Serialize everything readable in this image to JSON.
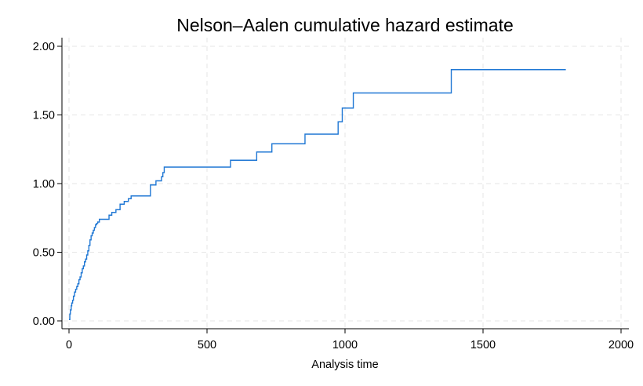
{
  "chart_data": {
    "type": "line",
    "title": "Nelson–Aalen cumulative hazard estimate",
    "xlabel": "Analysis time",
    "ylabel": "",
    "xlim": [
      0,
      2000
    ],
    "ylim": [
      0,
      2.0
    ],
    "xticks": [
      0,
      500,
      1000,
      1500,
      2000
    ],
    "xtick_labels": [
      "0",
      "500",
      "1000",
      "1500",
      "2000"
    ],
    "yticks": [
      0,
      0.5,
      1.0,
      1.5,
      2.0
    ],
    "ytick_labels": [
      "0.00",
      "0.50",
      "1.00",
      "1.50",
      "2.00"
    ],
    "grid": true,
    "step": true,
    "series": [
      {
        "color": "#1f77d4",
        "x": [
          0,
          3,
          5,
          8,
          10,
          13,
          16,
          20,
          24,
          28,
          32,
          36,
          40,
          44,
          48,
          52,
          56,
          60,
          64,
          68,
          72,
          76,
          80,
          84,
          88,
          92,
          96,
          100,
          104,
          110,
          145,
          155,
          170,
          185,
          200,
          215,
          225,
          240,
          250,
          295,
          315,
          335,
          340,
          345,
          585,
          680,
          735,
          855,
          975,
          990,
          1030,
          1385,
          1800
        ],
        "y": [
          0.01,
          0.05,
          0.08,
          0.11,
          0.13,
          0.15,
          0.18,
          0.21,
          0.23,
          0.25,
          0.27,
          0.3,
          0.32,
          0.35,
          0.38,
          0.4,
          0.43,
          0.45,
          0.48,
          0.51,
          0.55,
          0.59,
          0.62,
          0.64,
          0.66,
          0.68,
          0.7,
          0.71,
          0.72,
          0.74,
          0.77,
          0.79,
          0.81,
          0.85,
          0.87,
          0.89,
          0.91,
          0.91,
          0.91,
          0.99,
          1.02,
          1.05,
          1.08,
          1.12,
          1.17,
          1.23,
          1.29,
          1.36,
          1.45,
          1.55,
          1.66,
          1.83,
          1.83
        ]
      }
    ]
  }
}
